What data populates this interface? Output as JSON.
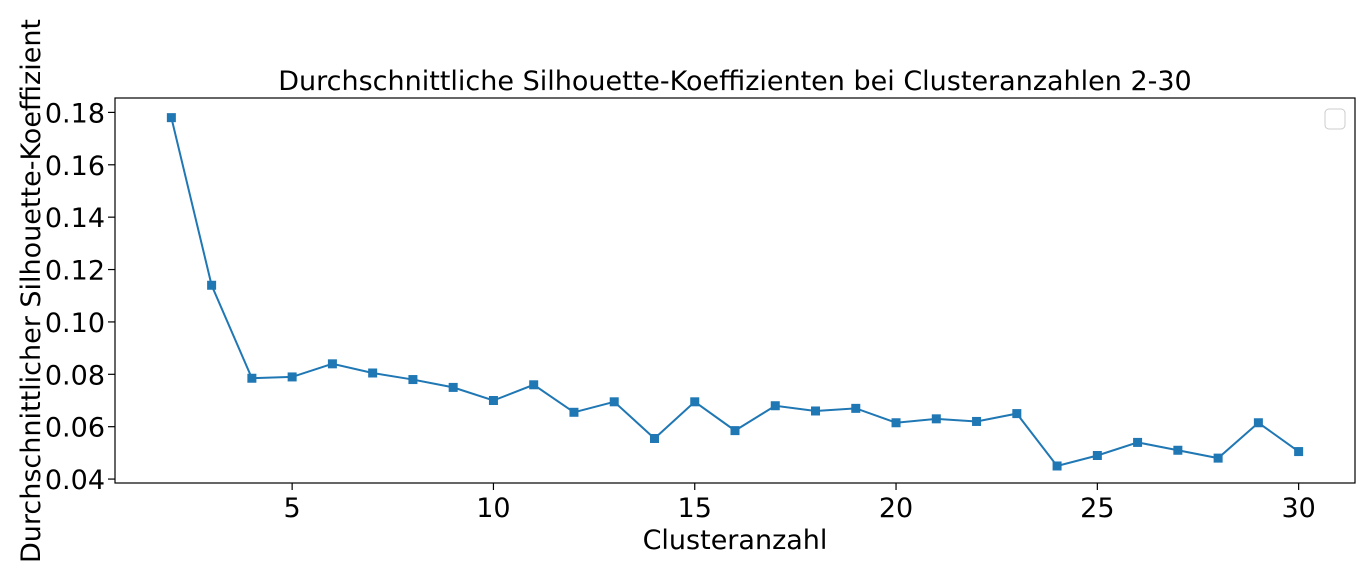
{
  "chart_data": {
    "type": "line",
    "title": "Durchschnittliche Silhouette-Koeffizienten bei Clusteranzahlen 2-30",
    "xlabel": "Clusteranzahl",
    "ylabel": "Durchschnittlicher Silhouette-Koeffizient",
    "xlim": [
      0.6,
      31.4
    ],
    "ylim": [
      0.0385,
      0.1855
    ],
    "xticks": [
      5,
      10,
      15,
      20,
      25,
      30
    ],
    "yticks": [
      0.04,
      0.06,
      0.08,
      0.1,
      0.12,
      0.14,
      0.16,
      0.18
    ],
    "ytick_labels": [
      "0.04",
      "0.06",
      "0.08",
      "0.10",
      "0.12",
      "0.14",
      "0.16",
      "0.18"
    ],
    "grid": false,
    "legend": "top-right (empty)",
    "series": [
      {
        "color": "#1f77b4",
        "marker": "square",
        "x": [
          2,
          3,
          4,
          5,
          6,
          7,
          8,
          9,
          10,
          11,
          12,
          13,
          14,
          15,
          16,
          17,
          18,
          19,
          20,
          21,
          22,
          23,
          24,
          25,
          26,
          27,
          28,
          29,
          30
        ],
        "y": [
          0.178,
          0.114,
          0.0785,
          0.079,
          0.084,
          0.0805,
          0.078,
          0.075,
          0.07,
          0.076,
          0.0655,
          0.0695,
          0.0555,
          0.0695,
          0.0585,
          0.068,
          0.066,
          0.067,
          0.0615,
          0.063,
          0.062,
          0.065,
          0.045,
          0.049,
          0.054,
          0.051,
          0.048,
          0.0615,
          0.0505
        ]
      }
    ]
  }
}
